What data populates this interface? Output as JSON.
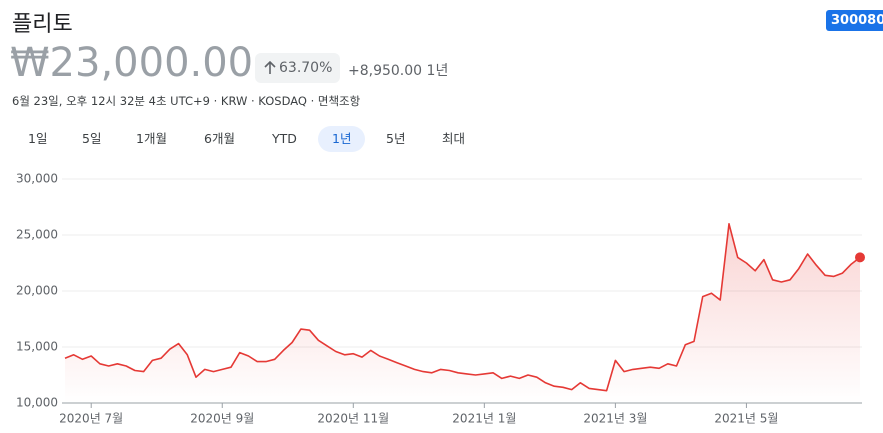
{
  "header": {
    "title": "플리토",
    "ticker": "300080",
    "price": "₩23,000.00",
    "change_percent": "63.70%",
    "change_amount": "+8,950.00",
    "change_period": "1년",
    "subtitle": "6월 23일, 오후 12시 32분 4초 UTC+9 · KRW · KOSDAQ · 면책조항"
  },
  "ranges": [
    "1일",
    "5일",
    "1개월",
    "6개월",
    "YTD",
    "1년",
    "5년",
    "최대"
  ],
  "chart_data": {
    "type": "line",
    "color": "#e53935",
    "categories": [
      null,
      null,
      null,
      "2020년 7월",
      null,
      null,
      null,
      null,
      null,
      null,
      null,
      null,
      null,
      null,
      null,
      null,
      null,
      null,
      "2020년 9월",
      null,
      null,
      null,
      null,
      null,
      null,
      null,
      null,
      null,
      null,
      null,
      null,
      null,
      null,
      "2020년 11월",
      null,
      null,
      null,
      null,
      null,
      null,
      null,
      null,
      null,
      null,
      null,
      null,
      null,
      null,
      "2021년 1월",
      null,
      null,
      null,
      null,
      null,
      null,
      null,
      null,
      null,
      null,
      null,
      null,
      null,
      null,
      "2021년 3월",
      null,
      null,
      null,
      null,
      null,
      null,
      null,
      null,
      null,
      null,
      null,
      null,
      null,
      null,
      "2021년 5월",
      null,
      null,
      null,
      null,
      null,
      null,
      null,
      null,
      null,
      null,
      null,
      null,
      null
    ],
    "values": [
      14000,
      14300,
      13900,
      14200,
      13500,
      13300,
      13500,
      13300,
      12900,
      12800,
      13800,
      14000,
      14800,
      15300,
      14300,
      12300,
      13000,
      12800,
      13000,
      13200,
      14500,
      14200,
      13700,
      13700,
      13900,
      14700,
      15400,
      16600,
      16500,
      15600,
      15100,
      14600,
      14300,
      14400,
      14100,
      14700,
      14200,
      13900,
      13600,
      13300,
      13000,
      12800,
      12700,
      13000,
      12900,
      12700,
      12600,
      12500,
      12600,
      12700,
      12200,
      12400,
      12200,
      12500,
      12300,
      11800,
      11500,
      11400,
      11200,
      11800,
      11300,
      11200,
      11100,
      13800,
      12800,
      13000,
      13100,
      13200,
      13100,
      13500,
      13300,
      15200,
      15500,
      19500,
      19800,
      19200,
      26000,
      23000,
      22500,
      21800,
      22800,
      21000,
      20800,
      21000,
      22000,
      23300,
      22300,
      21400,
      21300,
      21600,
      22400,
      23000
    ],
    "ylim": [
      10000,
      30000
    ],
    "yticks": [
      {
        "value": 10000,
        "label": "10,000"
      },
      {
        "value": 15000,
        "label": "15,000"
      },
      {
        "value": 20000,
        "label": "20,000"
      },
      {
        "value": 25000,
        "label": "25,000"
      },
      {
        "value": 30000,
        "label": "30,000"
      }
    ],
    "grid": true
  }
}
